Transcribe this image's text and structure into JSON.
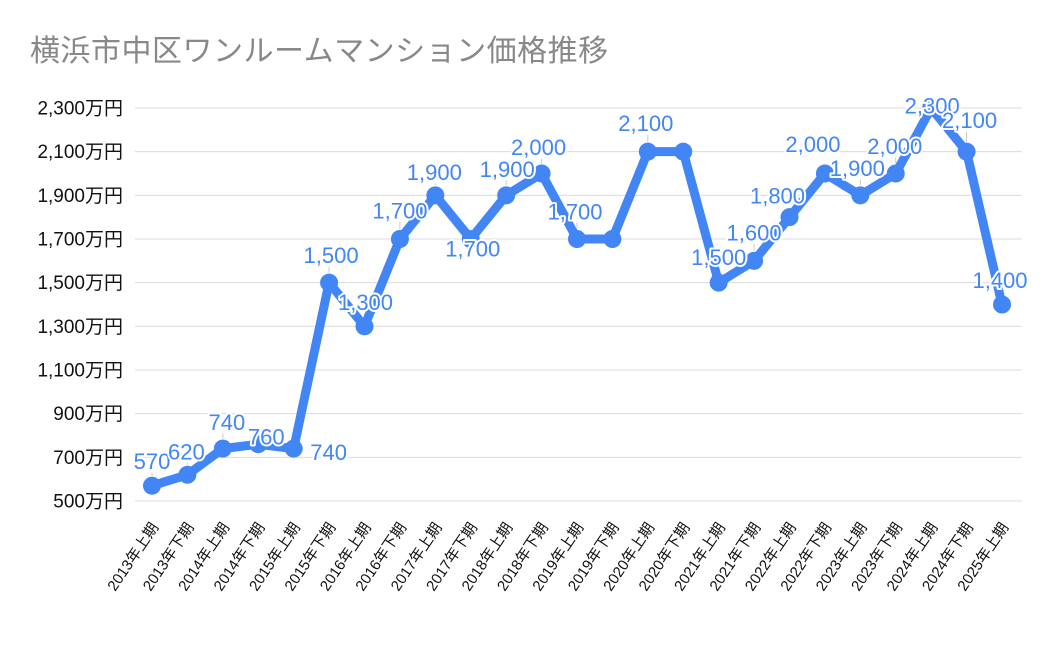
{
  "colors": {
    "series": "#4285f4",
    "data_label": "#4285f4",
    "data_label_halo": "#ffffff",
    "grid": "#dcdcdc",
    "axis_text": "#111111",
    "title_text": "#888888",
    "leader_line": "#c8c8c8",
    "background": "#ffffff"
  },
  "chart_data": {
    "type": "line",
    "title": "横浜市中区ワンルームマンション価格推移",
    "unit": "万円",
    "legend": "none",
    "grid": "horizontal",
    "categories": [
      "2013年上期",
      "2013年下期",
      "2014年上期",
      "2014年下期",
      "2015年上期",
      "2015年下期",
      "2016年上期",
      "2016年下期",
      "2017年上期",
      "2017年下期",
      "2018年上期",
      "2018年下期",
      "2019年上期",
      "2019年下期",
      "2020年上期",
      "2020年下期",
      "2021年上期",
      "2021年下期",
      "2022年上期",
      "2022年下期",
      "2023年上期",
      "2023年下期",
      "2024年上期",
      "2024年下期",
      "2025年上期"
    ],
    "values": [
      570,
      620,
      740,
      760,
      740,
      1500,
      1300,
      1700,
      1900,
      1700,
      1900,
      2000,
      1700,
      1700,
      2100,
      2100,
      1500,
      1600,
      1800,
      2000,
      1900,
      2000,
      2300,
      2100,
      1400
    ],
    "point_labels": [
      "570",
      "620",
      "740",
      "760",
      "740",
      "1,500",
      "1,300",
      "1,700",
      "1,900",
      "1,700",
      "1,900",
      "2,000",
      "1,700",
      null,
      "2,100",
      null,
      "1,500",
      "1,600",
      "1,800",
      "2,000",
      "1,900",
      "2,000",
      "2,300",
      "2,100",
      "1,400"
    ],
    "label_offsets": [
      [
        0,
        -24
      ],
      [
        -1,
        -23
      ],
      [
        4,
        -26
      ],
      [
        8,
        -7
      ],
      [
        35,
        4
      ],
      [
        2,
        -27
      ],
      [
        1,
        -24
      ],
      [
        0,
        -28
      ],
      [
        -1,
        -23
      ],
      [
        2,
        10
      ],
      [
        1,
        -26
      ],
      [
        -3,
        -26
      ],
      [
        -2,
        -27
      ],
      null,
      [
        -2,
        -28
      ],
      null,
      [
        0,
        -25
      ],
      [
        0,
        -28
      ],
      [
        -12,
        -21
      ],
      [
        -12,
        -29
      ],
      [
        -3,
        -27
      ],
      [
        -1,
        -27
      ],
      [
        1,
        -2
      ],
      [
        3,
        -31
      ],
      [
        -2,
        -24
      ]
    ],
    "y_axis": {
      "min": 500,
      "max": 2300,
      "tick_step": 200,
      "ticks": [
        {
          "value": 500,
          "label": "500万円"
        },
        {
          "value": 700,
          "label": "700万円"
        },
        {
          "value": 900,
          "label": "900万円"
        },
        {
          "value": 1100,
          "label": "1,100万円"
        },
        {
          "value": 1300,
          "label": "1,300万円"
        },
        {
          "value": 1500,
          "label": "1,500万円"
        },
        {
          "value": 1700,
          "label": "1,700万円"
        },
        {
          "value": 1900,
          "label": "1,900万円"
        },
        {
          "value": 2100,
          "label": "2,100万円"
        },
        {
          "value": 2300,
          "label": "2,300万円"
        }
      ]
    }
  }
}
